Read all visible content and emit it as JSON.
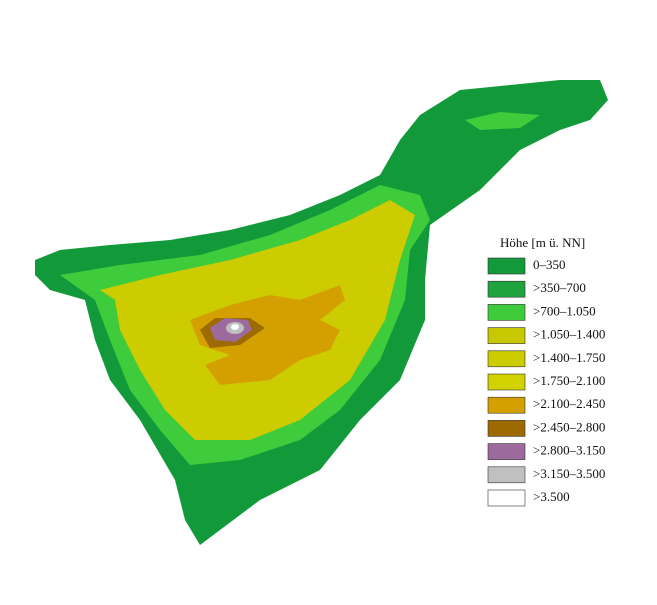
{
  "legend": {
    "title": "Höhe [m ü. NN]",
    "entries": [
      {
        "label": "0–350",
        "color": "#129a3a"
      },
      {
        "label": ">350–700",
        "color": "#1fa33f"
      },
      {
        "label": ">700–1.050",
        "color": "#3ecb3c"
      },
      {
        "label": ">1.050–1.400",
        "color": "#c8c800"
      },
      {
        "label": ">1.400–1.750",
        "color": "#cccc00"
      },
      {
        "label": ">1.750–2.100",
        "color": "#d2d200"
      },
      {
        "label": ">2.100–2.450",
        "color": "#d4a000"
      },
      {
        "label": ">2.450–2.800",
        "color": "#9c6a00"
      },
      {
        "label": ">2.800–3.150",
        "color": "#9c6a9c"
      },
      {
        "label": ">3.150–3.500",
        "color": "#c0c0c0"
      },
      {
        "label": ">3.500",
        "color": "#ffffff"
      }
    ]
  }
}
